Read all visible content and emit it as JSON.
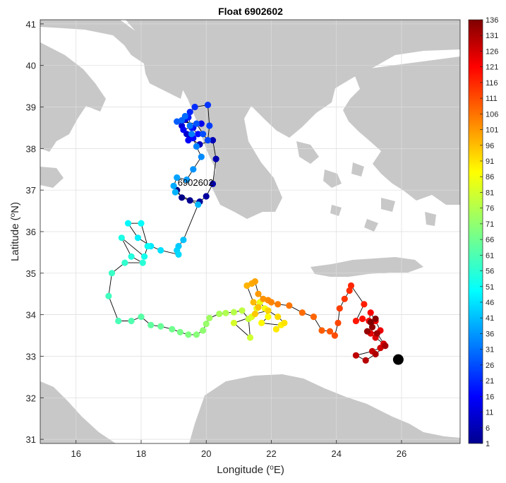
{
  "colors": {
    "land": "#c8c8c8",
    "sea": "#ffffff",
    "track": "#000000",
    "grid": "#dcdcdc",
    "current_position": "#000000"
  },
  "chart_data": {
    "type": "scatter",
    "title": "Float 6902602",
    "xlabel": "Longitude (°E)",
    "ylabel": "Latitude (°N)",
    "xlim": [
      14.9,
      27.8
    ],
    "ylim": [
      30.9,
      41.1
    ],
    "xticks": [
      16,
      18,
      20,
      22,
      24,
      26
    ],
    "yticks": [
      31,
      32,
      33,
      34,
      35,
      36,
      37,
      38,
      39,
      40,
      41
    ],
    "xtick_labels": [
      "16",
      "18",
      "20",
      "22",
      "24",
      "26"
    ],
    "ytick_labels": [
      "31",
      "32",
      "33",
      "34",
      "35",
      "36",
      "37",
      "38",
      "39",
      "40",
      "41"
    ],
    "grid": true,
    "color_by": "cycle number",
    "colorbar": {
      "colormap": "jet",
      "min": 1,
      "max": 136,
      "ticks": [
        1,
        6,
        11,
        16,
        21,
        26,
        31,
        36,
        41,
        46,
        51,
        56,
        61,
        66,
        71,
        76,
        81,
        86,
        91,
        96,
        101,
        106,
        111,
        116,
        121,
        126,
        131,
        136
      ],
      "tick_labels": [
        "1",
        "6",
        "11",
        "16",
        "21",
        "26",
        "31",
        "36",
        "41",
        "46",
        "51",
        "56",
        "61",
        "66",
        "71",
        "76",
        "81",
        "86",
        "91",
        "96",
        "101",
        "106",
        "111",
        "116",
        "121",
        "126",
        "131",
        "136"
      ]
    },
    "deployment_label": "6902602",
    "track": [
      [
        19.1,
        37.0
      ],
      [
        19.25,
        36.82
      ],
      [
        19.5,
        36.75
      ],
      [
        19.8,
        36.72
      ],
      [
        20.0,
        36.85
      ],
      [
        20.2,
        37.15
      ],
      [
        20.3,
        37.75
      ],
      [
        20.2,
        38.2
      ],
      [
        19.8,
        38.1
      ],
      [
        19.5,
        38.25
      ],
      [
        19.4,
        38.35
      ],
      [
        19.25,
        38.55
      ],
      [
        19.35,
        38.7
      ],
      [
        19.6,
        38.5
      ],
      [
        19.85,
        38.6
      ],
      [
        19.3,
        38.45
      ],
      [
        19.45,
        38.2
      ],
      [
        19.6,
        38.25
      ],
      [
        19.75,
        38.35
      ],
      [
        19.55,
        38.5
      ],
      [
        19.45,
        38.75
      ],
      [
        19.5,
        38.88
      ],
      [
        19.65,
        39.0
      ],
      [
        20.05,
        39.05
      ],
      [
        20.1,
        38.55
      ],
      [
        20.05,
        38.2
      ],
      [
        19.9,
        38.35
      ],
      [
        19.7,
        38.6
      ],
      [
        19.1,
        38.65
      ],
      [
        19.25,
        38.68
      ],
      [
        19.35,
        38.78
      ],
      [
        19.5,
        38.55
      ],
      [
        19.55,
        38.35
      ],
      [
        19.7,
        38.05
      ],
      [
        19.85,
        37.8
      ],
      [
        19.6,
        37.5
      ],
      [
        19.4,
        37.25
      ],
      [
        19.1,
        37.3
      ],
      [
        19.0,
        37.1
      ],
      [
        19.05,
        36.95
      ],
      [
        19.75,
        36.65
      ],
      [
        19.3,
        35.8
      ],
      [
        19.15,
        35.65
      ],
      [
        19.1,
        35.55
      ],
      [
        19.15,
        35.45
      ],
      [
        18.6,
        35.55
      ],
      [
        18.3,
        35.65
      ],
      [
        17.9,
        35.85
      ],
      [
        17.6,
        36.2
      ],
      [
        18.0,
        36.2
      ],
      [
        18.2,
        35.65
      ],
      [
        18.1,
        35.4
      ],
      [
        17.4,
        35.85
      ],
      [
        17.7,
        35.4
      ],
      [
        18.05,
        35.25
      ],
      [
        17.5,
        35.25
      ],
      [
        17.1,
        35.0
      ],
      [
        17.0,
        34.45
      ],
      [
        17.3,
        33.85
      ],
      [
        17.7,
        33.85
      ],
      [
        18.0,
        33.95
      ],
      [
        18.3,
        33.75
      ],
      [
        18.6,
        33.72
      ],
      [
        18.95,
        33.65
      ],
      [
        19.2,
        33.58
      ],
      [
        19.45,
        33.52
      ],
      [
        19.7,
        33.52
      ],
      [
        19.9,
        33.62
      ],
      [
        20.0,
        33.78
      ],
      [
        20.1,
        33.92
      ],
      [
        20.4,
        34.02
      ],
      [
        20.6,
        34.04
      ],
      [
        20.85,
        34.06
      ],
      [
        21.1,
        34.1
      ],
      [
        21.3,
        33.9
      ],
      [
        21.35,
        33.45
      ],
      [
        20.85,
        33.8
      ],
      [
        21.4,
        33.95
      ],
      [
        21.55,
        34.15
      ],
      [
        21.65,
        34.3
      ],
      [
        21.8,
        34.15
      ],
      [
        21.9,
        33.95
      ],
      [
        21.7,
        33.8
      ],
      [
        22.3,
        33.75
      ],
      [
        22.15,
        33.65
      ],
      [
        22.4,
        33.8
      ],
      [
        22.2,
        33.95
      ],
      [
        21.9,
        34.1
      ],
      [
        21.5,
        34.02
      ],
      [
        21.6,
        34.18
      ],
      [
        21.45,
        34.3
      ],
      [
        21.25,
        34.7
      ],
      [
        21.4,
        34.75
      ],
      [
        21.5,
        34.8
      ],
      [
        21.6,
        34.5
      ],
      [
        21.75,
        34.38
      ],
      [
        21.9,
        34.35
      ],
      [
        22.0,
        34.3
      ],
      [
        22.2,
        34.25
      ],
      [
        22.55,
        34.22
      ],
      [
        22.95,
        34.05
      ],
      [
        23.3,
        33.95
      ],
      [
        23.55,
        33.62
      ],
      [
        23.8,
        33.6
      ],
      [
        23.95,
        33.5
      ],
      [
        24.05,
        33.8
      ],
      [
        24.1,
        34.15
      ],
      [
        24.25,
        34.38
      ],
      [
        24.4,
        34.58
      ],
      [
        24.45,
        34.7
      ],
      [
        24.85,
        34.25
      ],
      [
        24.6,
        33.85
      ],
      [
        24.8,
        33.9
      ],
      [
        25.0,
        33.85
      ],
      [
        25.05,
        34.05
      ],
      [
        25.2,
        33.85
      ],
      [
        25.35,
        33.62
      ],
      [
        25.05,
        33.55
      ],
      [
        25.2,
        33.45
      ],
      [
        25.45,
        33.3
      ],
      [
        25.35,
        33.2
      ],
      [
        25.1,
        33.12
      ],
      [
        24.6,
        33.02
      ],
      [
        24.9,
        32.9
      ],
      [
        25.2,
        33.05
      ],
      [
        25.5,
        33.25
      ],
      [
        25.25,
        33.55
      ],
      [
        24.95,
        33.6
      ],
      [
        25.1,
        33.7
      ],
      [
        25.2,
        33.9
      ],
      [
        25.05,
        33.82
      ]
    ],
    "current_position": [
      25.9,
      32.92
    ]
  }
}
